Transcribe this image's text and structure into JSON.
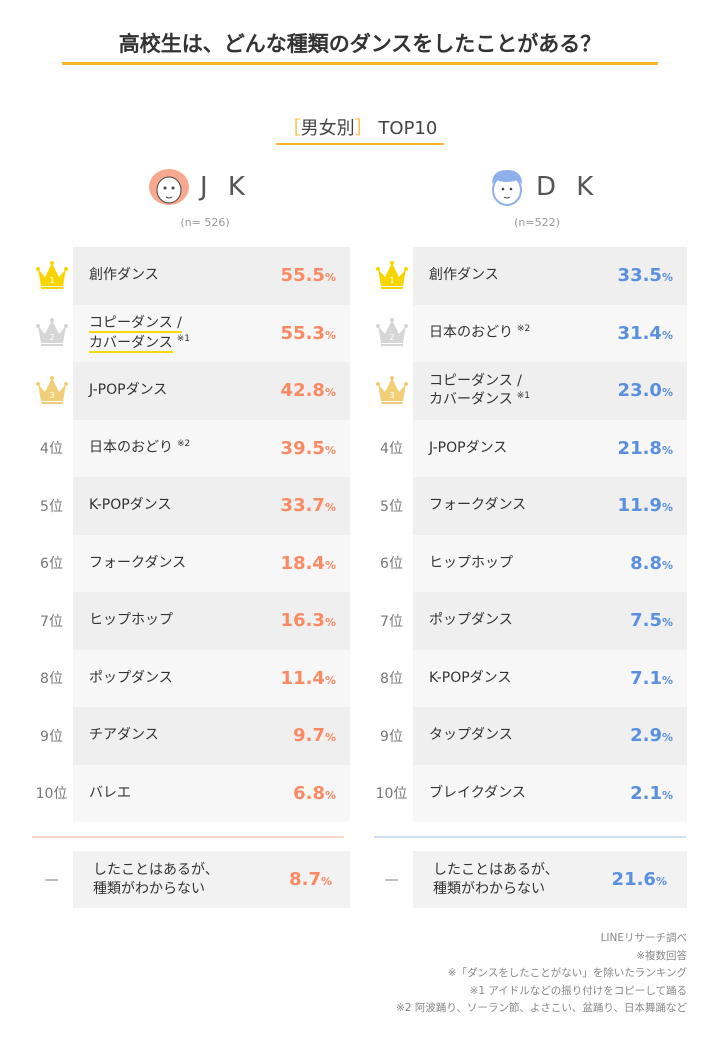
{
  "title": "高校生は、どんな種類のダンスをしたことがある？",
  "subtitle": {
    "bracket_open": "［",
    "label": "男女別",
    "bracket_close": "］",
    "suffix": "TOP10"
  },
  "colors": {
    "jk": "#fa8a63",
    "dk": "#5b8fe0",
    "gold": "#f7d600",
    "silver": "#d6d6d6",
    "bronze": "#f0cf78",
    "accent": "#f7b52c"
  },
  "jk": {
    "name": "J K",
    "n": "(n= 526)",
    "rows": [
      {
        "rank": "1",
        "label": "創作ダンス",
        "note": "",
        "value": "55.5",
        "unit": "%"
      },
      {
        "rank": "2",
        "label": "コピーダンス /",
        "label2": "カバーダンス",
        "note": "※1",
        "value": "55.3",
        "unit": "%"
      },
      {
        "rank": "3",
        "label": "J-POPダンス",
        "note": "",
        "value": "42.8",
        "unit": "%"
      },
      {
        "rank": "4位",
        "label": "日本のおどり",
        "note": "※2",
        "value": "39.5",
        "unit": "%"
      },
      {
        "rank": "5位",
        "label": "K-POPダンス",
        "note": "",
        "value": "33.7",
        "unit": "%"
      },
      {
        "rank": "6位",
        "label": "フォークダンス",
        "note": "",
        "value": "18.4",
        "unit": "%"
      },
      {
        "rank": "7位",
        "label": "ヒップホップ",
        "note": "",
        "value": "16.3",
        "unit": "%"
      },
      {
        "rank": "8位",
        "label": "ポップダンス",
        "note": "",
        "value": "11.4",
        "unit": "%"
      },
      {
        "rank": "9位",
        "label": "チアダンス",
        "note": "",
        "value": "9.7",
        "unit": "%"
      },
      {
        "rank": "10位",
        "label": "バレエ",
        "note": "",
        "value": "6.8",
        "unit": "%"
      }
    ],
    "other": {
      "rank": "—",
      "label": "したことはあるが、",
      "label2": "種類がわからない",
      "value": "8.7",
      "unit": "%"
    }
  },
  "dk": {
    "name": "D K",
    "n": "(n=522)",
    "rows": [
      {
        "rank": "1",
        "label": "創作ダンス",
        "note": "",
        "value": "33.5",
        "unit": "%"
      },
      {
        "rank": "2",
        "label": "日本のおどり",
        "note": "※2",
        "value": "31.4",
        "unit": "%"
      },
      {
        "rank": "3",
        "label": "コピーダンス /",
        "label2": "カバーダンス",
        "note": "※1",
        "value": "23.0",
        "unit": "%"
      },
      {
        "rank": "4位",
        "label": "J-POPダンス",
        "note": "",
        "value": "21.8",
        "unit": "%"
      },
      {
        "rank": "5位",
        "label": "フォークダンス",
        "note": "",
        "value": "11.9",
        "unit": "%"
      },
      {
        "rank": "6位",
        "label": "ヒップホップ",
        "note": "",
        "value": "8.8",
        "unit": "%"
      },
      {
        "rank": "7位",
        "label": "ポップダンス",
        "note": "",
        "value": "7.5",
        "unit": "%"
      },
      {
        "rank": "8位",
        "label": "K-POPダンス",
        "note": "",
        "value": "7.1",
        "unit": "%"
      },
      {
        "rank": "9位",
        "label": "タップダンス",
        "note": "",
        "value": "2.9",
        "unit": "%"
      },
      {
        "rank": "10位",
        "label": "ブレイクダンス",
        "note": "",
        "value": "2.1",
        "unit": "%"
      }
    ],
    "other": {
      "rank": "—",
      "label": "したことはあるが、",
      "label2": "種類がわからない",
      "value": "21.6",
      "unit": "%"
    }
  },
  "notes": [
    "LINEリサーチ調べ",
    "※複数回答",
    "※「ダンスをしたことがない」を除いたランキング",
    "※1 アイドルなどの振り付けをコピーして踊る",
    "※2 阿波踊り、ソーラン節、よさこい、盆踊り、日本舞踊など"
  ]
}
